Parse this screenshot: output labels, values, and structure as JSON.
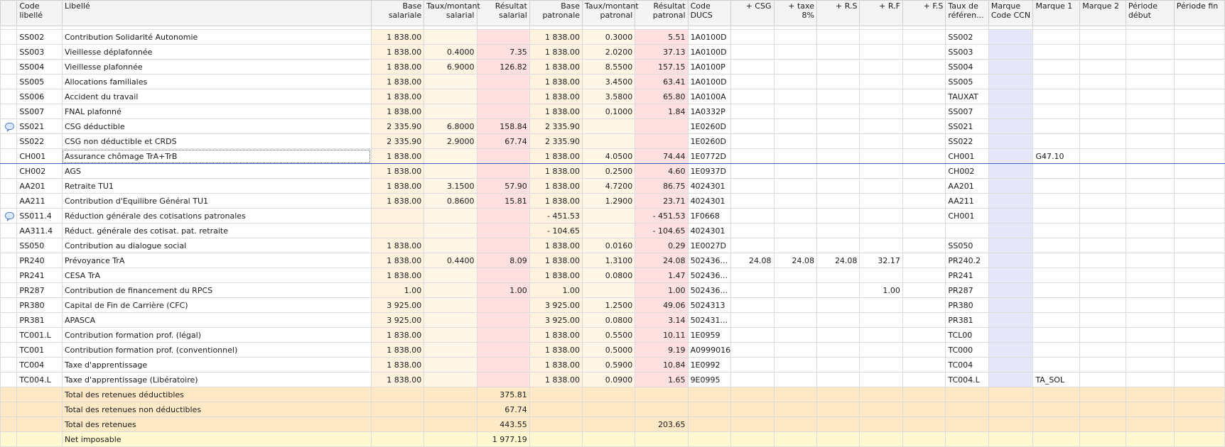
{
  "columns": [
    {
      "key": "code",
      "label": "Code libellé",
      "align": "left",
      "type": "code"
    },
    {
      "key": "libelle",
      "label": "Libellé",
      "align": "left",
      "type": "lib"
    },
    {
      "key": "base_sal",
      "label": "Base salariale",
      "align": "right",
      "type": "base"
    },
    {
      "key": "taux_sal",
      "label": "Taux/montant salarial",
      "align": "right",
      "type": "taux"
    },
    {
      "key": "res_sal",
      "label": "Résultat salarial",
      "align": "right",
      "type": "res"
    },
    {
      "key": "base_pat",
      "label": "Base patronale",
      "align": "right",
      "type": "base"
    },
    {
      "key": "taux_pat",
      "label": "Taux/montant patronal",
      "align": "right",
      "type": "taux"
    },
    {
      "key": "res_pat",
      "label": "Résultat patronal",
      "align": "right",
      "type": "res"
    },
    {
      "key": "ducs",
      "label": "Code DUCS",
      "align": "left",
      "type": "code"
    },
    {
      "key": "csg",
      "label": "+ CSG",
      "align": "right",
      "type": "plain"
    },
    {
      "key": "taxe8",
      "label": "+ taxe 8%",
      "align": "right",
      "type": "plain"
    },
    {
      "key": "rs",
      "label": "+ R.S",
      "align": "right",
      "type": "plain"
    },
    {
      "key": "rf",
      "label": "+ R.F",
      "align": "right",
      "type": "plain"
    },
    {
      "key": "fs",
      "label": "+ F.S",
      "align": "right",
      "type": "plain"
    },
    {
      "key": "taux_ref",
      "label": "Taux de référen...",
      "align": "left",
      "type": "ref"
    },
    {
      "key": "marque_ccn",
      "label": "Marque Code CCN",
      "align": "left",
      "type": "mark"
    },
    {
      "key": "marque1",
      "label": "Marque 1",
      "align": "left",
      "type": "plain"
    },
    {
      "key": "marque2",
      "label": "Marque 2",
      "align": "left",
      "type": "plain"
    },
    {
      "key": "periode_debut",
      "label": "Période début",
      "align": "left",
      "type": "plain"
    },
    {
      "key": "periode_fin",
      "label": "Période fin",
      "align": "left",
      "type": "plain"
    }
  ],
  "rows": [
    {
      "code": "SS002",
      "libelle": "Contribution Solidarité Autonomie",
      "base_sal": "1 838.00",
      "taux_sal": "",
      "res_sal": "",
      "base_pat": "1 838.00",
      "taux_pat": "0.3000",
      "res_pat": "5.51",
      "ducs": "1A0100D",
      "csg": "",
      "taxe8": "",
      "rs": "",
      "rf": "",
      "fs": "",
      "taux_ref": "SS002",
      "marque_ccn": "",
      "marque1": "",
      "marque2": "",
      "periode_debut": "",
      "periode_fin": ""
    },
    {
      "code": "SS003",
      "libelle": "Vieillesse déplafonnée",
      "base_sal": "1 838.00",
      "taux_sal": "0.4000",
      "res_sal": "7.35",
      "base_pat": "1 838.00",
      "taux_pat": "2.0200",
      "res_pat": "37.13",
      "ducs": "1A0100D",
      "csg": "",
      "taxe8": "",
      "rs": "",
      "rf": "",
      "fs": "",
      "taux_ref": "SS003",
      "marque_ccn": "",
      "marque1": "",
      "marque2": "",
      "periode_debut": "",
      "periode_fin": ""
    },
    {
      "code": "SS004",
      "libelle": "Vieillesse plafonnée",
      "base_sal": "1 838.00",
      "taux_sal": "6.9000",
      "res_sal": "126.82",
      "base_pat": "1 838.00",
      "taux_pat": "8.5500",
      "res_pat": "157.15",
      "ducs": "1A0100P",
      "csg": "",
      "taxe8": "",
      "rs": "",
      "rf": "",
      "fs": "",
      "taux_ref": "SS004",
      "marque_ccn": "",
      "marque1": "",
      "marque2": "",
      "periode_debut": "",
      "periode_fin": ""
    },
    {
      "code": "SS005",
      "libelle": "Allocations familiales",
      "base_sal": "1 838.00",
      "taux_sal": "",
      "res_sal": "",
      "base_pat": "1 838.00",
      "taux_pat": "3.4500",
      "res_pat": "63.41",
      "ducs": "1A0100D",
      "csg": "",
      "taxe8": "",
      "rs": "",
      "rf": "",
      "fs": "",
      "taux_ref": "SS005",
      "marque_ccn": "",
      "marque1": "",
      "marque2": "",
      "periode_debut": "",
      "periode_fin": ""
    },
    {
      "code": "SS006",
      "libelle": "Accident du travail",
      "base_sal": "1 838.00",
      "taux_sal": "",
      "res_sal": "",
      "base_pat": "1 838.00",
      "taux_pat": "3.5800",
      "res_pat": "65.80",
      "ducs": "1A0100A",
      "csg": "",
      "taxe8": "",
      "rs": "",
      "rf": "",
      "fs": "",
      "taux_ref": "TAUXAT",
      "marque_ccn": "",
      "marque1": "",
      "marque2": "",
      "periode_debut": "",
      "periode_fin": ""
    },
    {
      "code": "SS007",
      "libelle": "FNAL plafonné",
      "base_sal": "1 838.00",
      "taux_sal": "",
      "res_sal": "",
      "base_pat": "1 838.00",
      "taux_pat": "0.1000",
      "res_pat": "1.84",
      "ducs": "1A0332P",
      "csg": "",
      "taxe8": "",
      "rs": "",
      "rf": "",
      "fs": "",
      "taux_ref": "SS007",
      "marque_ccn": "",
      "marque1": "",
      "marque2": "",
      "periode_debut": "",
      "periode_fin": ""
    },
    {
      "code": "SS021",
      "libelle": "CSG déductible",
      "comment": true,
      "base_sal": "2 335.90",
      "taux_sal": "6.8000",
      "res_sal": "158.84",
      "base_pat": "2 335.90",
      "taux_pat": "",
      "res_pat": "",
      "ducs": "1E0260D",
      "csg": "",
      "taxe8": "",
      "rs": "",
      "rf": "",
      "fs": "",
      "taux_ref": "SS021",
      "marque_ccn": "",
      "marque1": "",
      "marque2": "",
      "periode_debut": "",
      "periode_fin": ""
    },
    {
      "code": "SS022",
      "libelle": "CSG non déductible et CRDS",
      "base_sal": "2 335.90",
      "taux_sal": "2.9000",
      "res_sal": "67.74",
      "base_pat": "2 335.90",
      "taux_pat": "",
      "res_pat": "",
      "ducs": "1E0260D",
      "csg": "",
      "taxe8": "",
      "rs": "",
      "rf": "",
      "fs": "",
      "taux_ref": "SS022",
      "marque_ccn": "",
      "marque1": "",
      "marque2": "",
      "periode_debut": "",
      "periode_fin": ""
    },
    {
      "code": "CH001",
      "libelle": "Assurance chômage TrA+TrB",
      "selected": true,
      "base_sal": "1 838.00",
      "taux_sal": "",
      "res_sal": "",
      "base_pat": "1 838.00",
      "taux_pat": "4.0500",
      "res_pat": "74.44",
      "ducs": "1E0772D",
      "csg": "",
      "taxe8": "",
      "rs": "",
      "rf": "",
      "fs": "",
      "taux_ref": "CH001",
      "marque_ccn": "",
      "marque1": "G47.10",
      "marque2": "",
      "periode_debut": "",
      "periode_fin": ""
    },
    {
      "code": "CH002",
      "libelle": "AGS",
      "base_sal": "1 838.00",
      "taux_sal": "",
      "res_sal": "",
      "base_pat": "1 838.00",
      "taux_pat": "0.2500",
      "res_pat": "4.60",
      "ducs": "1E0937D",
      "csg": "",
      "taxe8": "",
      "rs": "",
      "rf": "",
      "fs": "",
      "taux_ref": "CH002",
      "marque_ccn": "",
      "marque1": "",
      "marque2": "",
      "periode_debut": "",
      "periode_fin": ""
    },
    {
      "code": "AA201",
      "libelle": "Retraite TU1",
      "base_sal": "1 838.00",
      "taux_sal": "3.1500",
      "res_sal": "57.90",
      "base_pat": "1 838.00",
      "taux_pat": "4.7200",
      "res_pat": "86.75",
      "ducs": "4024301",
      "csg": "",
      "taxe8": "",
      "rs": "",
      "rf": "",
      "fs": "",
      "taux_ref": "AA201",
      "marque_ccn": "",
      "marque1": "",
      "marque2": "",
      "periode_debut": "",
      "periode_fin": ""
    },
    {
      "code": "AA211",
      "libelle": "Contribution d'Equilibre Général TU1",
      "base_sal": "1 838.00",
      "taux_sal": "0.8600",
      "res_sal": "15.81",
      "base_pat": "1 838.00",
      "taux_pat": "1.2900",
      "res_pat": "23.71",
      "ducs": "4024301",
      "csg": "",
      "taxe8": "",
      "rs": "",
      "rf": "",
      "fs": "",
      "taux_ref": "AA211",
      "marque_ccn": "",
      "marque1": "",
      "marque2": "",
      "periode_debut": "",
      "periode_fin": ""
    },
    {
      "code": "SS011.4",
      "libelle": "Réduction générale des cotisations patronales",
      "comment": true,
      "base_sal": "",
      "taux_sal": "",
      "res_sal": "",
      "base_pat": "- 451.53",
      "taux_pat": "",
      "res_pat": "- 451.53",
      "ducs": "1F0668",
      "csg": "",
      "taxe8": "",
      "rs": "",
      "rf": "",
      "fs": "",
      "taux_ref": "CH001",
      "marque_ccn": "",
      "marque1": "",
      "marque2": "",
      "periode_debut": "",
      "periode_fin": ""
    },
    {
      "code": "AA311.4",
      "libelle": "Réduct. générale des cotisat. pat. retraite",
      "base_sal": "",
      "taux_sal": "",
      "res_sal": "",
      "base_pat": "- 104.65",
      "taux_pat": "",
      "res_pat": "- 104.65",
      "ducs": "4024301",
      "csg": "",
      "taxe8": "",
      "rs": "",
      "rf": "",
      "fs": "",
      "taux_ref": "",
      "marque_ccn": "",
      "marque1": "",
      "marque2": "",
      "periode_debut": "",
      "periode_fin": ""
    },
    {
      "code": "SS050",
      "libelle": "Contribution au dialogue social",
      "base_sal": "1 838.00",
      "taux_sal": "",
      "res_sal": "",
      "base_pat": "1 838.00",
      "taux_pat": "0.0160",
      "res_pat": "0.29",
      "ducs": "1E0027D",
      "csg": "",
      "taxe8": "",
      "rs": "",
      "rf": "",
      "fs": "",
      "taux_ref": "SS050",
      "marque_ccn": "",
      "marque1": "",
      "marque2": "",
      "periode_debut": "",
      "periode_fin": ""
    },
    {
      "code": "PR240",
      "libelle": "Prévoyance TrA",
      "base_sal": "1 838.00",
      "taux_sal": "0.4400",
      "res_sal": "8.09",
      "base_pat": "1 838.00",
      "taux_pat": "1.3100",
      "res_pat": "24.08",
      "ducs": "502436...",
      "csg": "24.08",
      "taxe8": "24.08",
      "rs": "24.08",
      "rf": "32.17",
      "fs": "",
      "taux_ref": "PR240.2",
      "marque_ccn": "",
      "marque1": "",
      "marque2": "",
      "periode_debut": "",
      "periode_fin": ""
    },
    {
      "code": "PR241",
      "libelle": "CESA TrA",
      "base_sal": "1 838.00",
      "taux_sal": "",
      "res_sal": "",
      "base_pat": "1 838.00",
      "taux_pat": "0.0800",
      "res_pat": "1.47",
      "ducs": "502436...",
      "csg": "",
      "taxe8": "",
      "rs": "",
      "rf": "",
      "fs": "",
      "taux_ref": "PR241",
      "marque_ccn": "",
      "marque1": "",
      "marque2": "",
      "periode_debut": "",
      "periode_fin": ""
    },
    {
      "code": "PR287",
      "libelle": "Contribution de financement du RPCS",
      "base_sal": "1.00",
      "taux_sal": "",
      "res_sal": "1.00",
      "base_pat": "1.00",
      "taux_pat": "",
      "res_pat": "1.00",
      "ducs": "502436...",
      "csg": "",
      "taxe8": "",
      "rs": "",
      "rf": "1.00",
      "fs": "",
      "taux_ref": "PR287",
      "marque_ccn": "",
      "marque1": "",
      "marque2": "",
      "periode_debut": "",
      "periode_fin": ""
    },
    {
      "code": "PR380",
      "libelle": "Capital de Fin de Carrière (CFC)",
      "base_sal": "3 925.00",
      "taux_sal": "",
      "res_sal": "",
      "base_pat": "3 925.00",
      "taux_pat": "1.2500",
      "res_pat": "49.06",
      "ducs": "5024313",
      "csg": "",
      "taxe8": "",
      "rs": "",
      "rf": "",
      "fs": "",
      "taux_ref": "PR380",
      "marque_ccn": "",
      "marque1": "",
      "marque2": "",
      "periode_debut": "",
      "periode_fin": ""
    },
    {
      "code": "PR381",
      "libelle": "APASCA",
      "base_sal": "3 925.00",
      "taux_sal": "",
      "res_sal": "",
      "base_pat": "3 925.00",
      "taux_pat": "0.0800",
      "res_pat": "3.14",
      "ducs": "502431...",
      "csg": "",
      "taxe8": "",
      "rs": "",
      "rf": "",
      "fs": "",
      "taux_ref": "PR381",
      "marque_ccn": "",
      "marque1": "",
      "marque2": "",
      "periode_debut": "",
      "periode_fin": ""
    },
    {
      "code": "TC001.L",
      "libelle": "Contribution formation prof. (légal)",
      "base_sal": "1 838.00",
      "taux_sal": "",
      "res_sal": "",
      "base_pat": "1 838.00",
      "taux_pat": "0.5500",
      "res_pat": "10.11",
      "ducs": "1E0959",
      "csg": "",
      "taxe8": "",
      "rs": "",
      "rf": "",
      "fs": "",
      "taux_ref": "TCL00",
      "marque_ccn": "",
      "marque1": "",
      "marque2": "",
      "periode_debut": "",
      "periode_fin": ""
    },
    {
      "code": "TC001",
      "libelle": "Contribution formation prof. (conventionnel)",
      "base_sal": "1 838.00",
      "taux_sal": "",
      "res_sal": "",
      "base_pat": "1 838.00",
      "taux_pat": "0.5000",
      "res_pat": "9.19",
      "ducs": "A0999016",
      "csg": "",
      "taxe8": "",
      "rs": "",
      "rf": "",
      "fs": "",
      "taux_ref": "TC000",
      "marque_ccn": "",
      "marque1": "",
      "marque2": "",
      "periode_debut": "",
      "periode_fin": ""
    },
    {
      "code": "TC004",
      "libelle": "Taxe d'apprentissage",
      "base_sal": "1 838.00",
      "taux_sal": "",
      "res_sal": "",
      "base_pat": "1 838.00",
      "taux_pat": "0.5900",
      "res_pat": "10.84",
      "ducs": "1E0992",
      "csg": "",
      "taxe8": "",
      "rs": "",
      "rf": "",
      "fs": "",
      "taux_ref": "TC004",
      "marque_ccn": "",
      "marque1": "",
      "marque2": "",
      "periode_debut": "",
      "periode_fin": ""
    },
    {
      "code": "TC004.L",
      "libelle": "Taxe d'apprentissage (Libératoire)",
      "base_sal": "1 838.00",
      "taux_sal": "",
      "res_sal": "",
      "base_pat": "1 838.00",
      "taux_pat": "0.0900",
      "res_pat": "1.65",
      "ducs": "9E0995",
      "csg": "",
      "taxe8": "",
      "rs": "",
      "rf": "",
      "fs": "",
      "taux_ref": "TC004.L",
      "marque_ccn": "",
      "marque1": "TA_SOL",
      "marque2": "",
      "periode_debut": "",
      "periode_fin": ""
    }
  ],
  "totals": [
    {
      "libelle": "Total des retenues déductibles",
      "res_sal": "375.81",
      "res_pat": "",
      "kind": "total"
    },
    {
      "libelle": "Total des retenues non déductibles",
      "res_sal": "67.74",
      "res_pat": "",
      "kind": "total"
    },
    {
      "libelle": "Total des retenues",
      "res_sal": "443.55",
      "res_pat": "203.65",
      "kind": "total"
    },
    {
      "libelle": "Net imposable",
      "res_sal": "1 977.19",
      "res_pat": "",
      "kind": "net"
    }
  ],
  "colors": {
    "base": "#fff3df",
    "taux": "#fff6e6",
    "resultat": "#ffe0e0",
    "marque": "#e6e6fa",
    "total_row": "#fde9c6",
    "net_row": "#fff8d0",
    "selection": "#4060c8"
  }
}
